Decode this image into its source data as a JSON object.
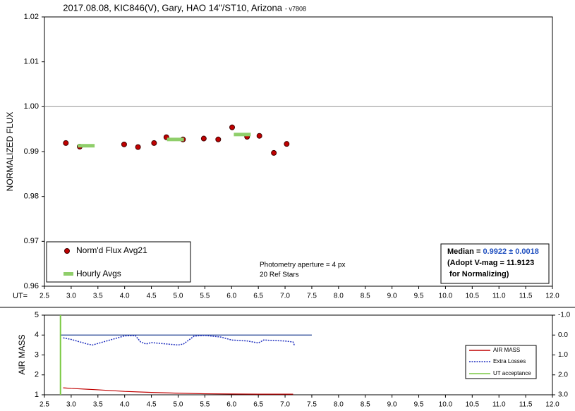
{
  "chart_data": [
    {
      "type": "scatter",
      "title": "2017.08.08, KIC846(V), Gary, HAO 14\"/ST10, Arizona",
      "title_suffix": "- v7808",
      "ylabel": "NORMALIZED FLUX",
      "xlabel": "UT=",
      "xlim": [
        2.5,
        12.0
      ],
      "xticks": [
        2.5,
        {
          "value": 3,
          "label": "3.0"
        },
        3.5,
        {
          "value": 4,
          "label": "4.0"
        },
        4.5,
        {
          "value": 5,
          "label": "5.0"
        },
        5.5,
        {
          "value": 6,
          "label": "6.0"
        },
        6.5,
        {
          "value": 7,
          "label": "7.0"
        },
        7.5,
        {
          "value": 8,
          "label": "8.0"
        },
        8.5,
        {
          "value": 9,
          "label": "9.0"
        },
        9.5,
        {
          "value": 10,
          "label": "10.0"
        },
        10.5,
        {
          "value": 11,
          "label": "11.0"
        },
        11.5,
        {
          "value": 12,
          "label": "12.0"
        }
      ],
      "ylim": [
        0.96,
        1.02
      ],
      "yticks": [
        0.96,
        0.97,
        0.98,
        0.99,
        {
          "value": 1,
          "label": "1.00"
        },
        1.01,
        1.02
      ],
      "hline": {
        "value": 1,
        "color": "#a0a0a0"
      },
      "series": [
        {
          "name": "Norm'd Flux Avg21",
          "color": "#c00000",
          "mark": "dot",
          "x": [
            2.9,
            3.16,
            3.99,
            4.25,
            4.55,
            4.78,
            5.09,
            5.48,
            5.75,
            6.01,
            6.29,
            6.52,
            6.79,
            7.03
          ],
          "values": [
            0.9919,
            0.9911,
            0.9916,
            0.991,
            0.9919,
            0.9932,
            0.9927,
            0.9929,
            0.9927,
            0.9954,
            0.9933,
            0.9935,
            0.9897,
            0.9917
          ]
        },
        {
          "name": "Hourly Avgs",
          "color": "#8fce6a",
          "mark": "dash",
          "x": [
            3.28,
            4.95,
            6.2
          ],
          "values": [
            0.9913,
            0.9927,
            0.9938
          ]
        }
      ],
      "annotations": [
        "Photometry aperture = 4 px",
        "20 Ref Stars"
      ],
      "median_box": {
        "label": "Median = ",
        "value_text": "0.9922 ± 0.0018",
        "line2": "(Adopt V-mag = 11.9123",
        "line3": " for Normalizing)"
      }
    },
    {
      "type": "line",
      "ylabel": "AIR MASS",
      "xlim": [
        2.5,
        12.0
      ],
      "xticks": [
        2.5,
        {
          "value": 3,
          "label": "3.0"
        },
        3.5,
        {
          "value": 4,
          "label": "4.0"
        },
        4.5,
        {
          "value": 5,
          "label": "5.0"
        },
        5.5,
        {
          "value": 6,
          "label": "6.0"
        },
        6.5,
        {
          "value": 7,
          "label": "7.0"
        },
        7.5,
        {
          "value": 8,
          "label": "8.0"
        },
        8.5,
        {
          "value": 9,
          "label": "9.0"
        },
        9.5,
        {
          "value": 10,
          "label": "10.0"
        },
        10.5,
        {
          "value": 11,
          "label": "11.0"
        },
        11.5,
        {
          "value": 12,
          "label": "12.0"
        }
      ],
      "ylim": [
        1,
        5
      ],
      "yticks": [
        1,
        2,
        3,
        4,
        5
      ],
      "y2lim": [
        -1,
        3
      ],
      "y2_inverted": true,
      "y2ticks": [
        {
          "value": -1,
          "label": "-1.0"
        },
        {
          "value": 0,
          "label": "0.0"
        },
        {
          "value": 1,
          "label": "1.0"
        },
        {
          "value": 2,
          "label": "2.0"
        },
        {
          "value": 3,
          "label": "3.0"
        }
      ],
      "hline": {
        "value": 0,
        "axis": "y2",
        "x": [
          2.8,
          7.5
        ],
        "color": "#1f3f8f"
      },
      "series": [
        {
          "name": "AIR MASS",
          "color": "#c00000",
          "style": "solid",
          "x": [
            2.85,
            3.0,
            3.5,
            4.0,
            4.5,
            5.0,
            5.5,
            6.0,
            6.5,
            7.0,
            7.15
          ],
          "values": [
            1.35,
            1.32,
            1.25,
            1.17,
            1.12,
            1.08,
            1.05,
            1.04,
            1.03,
            1.03,
            1.03
          ]
        },
        {
          "name": "Extra Losses",
          "color": "#1f2fbf",
          "style": "dotted",
          "axis": "y2",
          "x": [
            2.85,
            3.0,
            3.3,
            3.4,
            4.0,
            4.2,
            4.3,
            4.4,
            4.5,
            5.0,
            5.1,
            5.3,
            5.5,
            5.8,
            6.0,
            6.3,
            6.5,
            6.6,
            7.0,
            7.15,
            7.18
          ],
          "values": [
            0.14,
            0.22,
            0.45,
            0.5,
            0.04,
            0.03,
            0.35,
            0.45,
            0.38,
            0.5,
            0.45,
            0.05,
            0.02,
            0.1,
            0.25,
            0.3,
            0.4,
            0.25,
            0.3,
            0.35,
            0.55
          ]
        },
        {
          "name": "UT acceptance",
          "color": "#7ac943",
          "style": "solid",
          "x": [
            2.8,
            2.8
          ],
          "values": [
            1,
            5
          ]
        }
      ]
    }
  ]
}
